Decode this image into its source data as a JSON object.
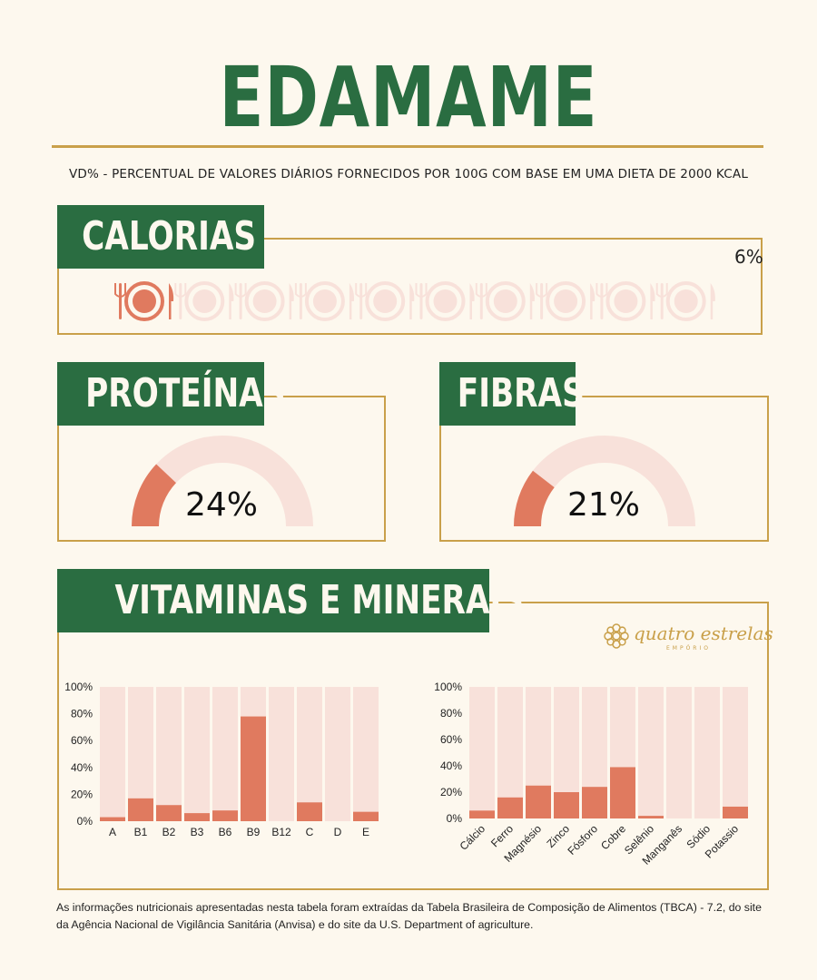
{
  "title": "EDAMAME",
  "subtitle": "VD% - PERCENTUAL DE VALORES DIÁRIOS FORNECIDOS POR 100G COM BASE EM UMA DIETA DE 2000 KCAL",
  "calorias": {
    "label": "CALORIAS",
    "value_label": "6%",
    "value": 6,
    "icon_count": 10,
    "filled_icons": 1,
    "icon": "plate-cutlery-icon"
  },
  "proteinas": {
    "label": "PROTEÍNAS",
    "value_label": "24%",
    "value": 24
  },
  "fibras": {
    "label": "FIBRAS",
    "value_label": "21%",
    "value": 21
  },
  "section_label": "VITAMINAS E MINERAIS",
  "logo": {
    "text": "quatro estrelas",
    "sub": "EMPÓRIO",
    "icon": "mandala-icon"
  },
  "colors": {
    "green": "#2a6d41",
    "gold": "#c9a04a",
    "coral": "#e07a5f",
    "light": "#f8e1da",
    "background": "#fdf8ee"
  },
  "chart_data": [
    {
      "type": "bar",
      "categories": [
        "A",
        "B1",
        "B2",
        "B3",
        "B6",
        "B9",
        "B12",
        "C",
        "D",
        "E"
      ],
      "values": [
        3,
        17,
        12,
        6,
        8,
        78,
        0,
        14,
        0,
        7
      ],
      "ylim": [
        0,
        100
      ],
      "yticks": [
        "0%",
        "20%",
        "40%",
        "60%",
        "80%",
        "100%"
      ],
      "background_bars": true
    },
    {
      "type": "bar",
      "categories": [
        "Cálcio",
        "Ferro",
        "Magnésio",
        "Zinco",
        "Fósforo",
        "Cobre",
        "Selênio",
        "Manganês",
        "Sódio",
        "Potassio"
      ],
      "values": [
        6,
        16,
        25,
        20,
        24,
        39,
        2,
        0,
        0,
        9
      ],
      "ylim": [
        0,
        100
      ],
      "yticks": [
        "0%",
        "20%",
        "40%",
        "60%",
        "80%",
        "100%"
      ],
      "background_bars": true
    }
  ],
  "footer": "As informações nutricionais apresentadas nesta tabela foram extraídas da Tabela Brasileira de Composição de Alimentos (TBCA) - 7.2, do site da Agência Nacional de Vigilância Sanitária (Anvisa) e do site da U.S. Department of agriculture."
}
